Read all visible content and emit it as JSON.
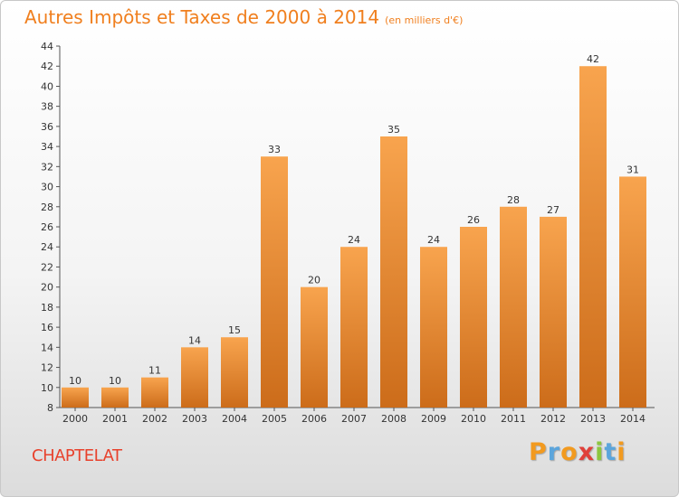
{
  "title": "Autres Impôts et Taxes de 2000 à 2014",
  "subtitle": "(en milliers d'€)",
  "place": "CHAPTELAT",
  "brand": {
    "letters": [
      "P",
      "r",
      "o",
      "x",
      "i",
      "t",
      "i"
    ],
    "colors": [
      "#f29a1f",
      "#5ba5dc",
      "#f29a1f",
      "#e0403a",
      "#8cc63f",
      "#5ba5dc",
      "#f29a1f"
    ]
  },
  "colors": {
    "bar_top": "#f8a44e",
    "bar_bottom": "#cc6c1a",
    "title": "#f07f1e",
    "place": "#e8412c"
  },
  "chart_data": {
    "type": "bar",
    "title": "Autres Impôts et Taxes de 2000 à 2014",
    "subtitle": "(en milliers d'€)",
    "categories": [
      "2000",
      "2001",
      "2002",
      "2003",
      "2004",
      "2005",
      "2006",
      "2007",
      "2008",
      "2009",
      "2010",
      "2011",
      "2012",
      "2013",
      "2014"
    ],
    "values": [
      10,
      10,
      11,
      14,
      15,
      33,
      20,
      24,
      35,
      24,
      26,
      28,
      27,
      42,
      31
    ],
    "ylim": [
      8,
      44
    ],
    "yticks": [
      8,
      10,
      12,
      14,
      16,
      18,
      20,
      22,
      24,
      26,
      28,
      30,
      32,
      34,
      36,
      38,
      40,
      42,
      44
    ],
    "grid": false,
    "legend": "none"
  }
}
